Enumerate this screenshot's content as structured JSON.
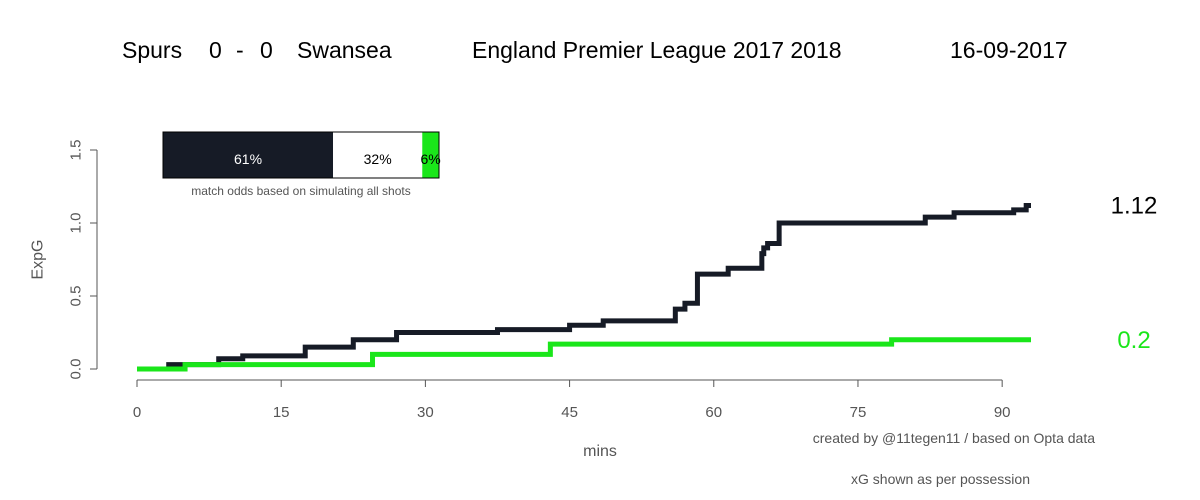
{
  "header": {
    "home_team": "Spurs",
    "home_score": "0",
    "dash": "-",
    "away_score": "0",
    "away_team": "Swansea",
    "competition": "England Premier League 2017 2018",
    "date": "16-09-2017"
  },
  "odds": {
    "home_pct": 61,
    "draw_pct": 32,
    "away_pct": 6,
    "home_label": "61%",
    "draw_label": "32%",
    "away_label": "6%",
    "caption": "match odds based on simulating all shots"
  },
  "credits": {
    "created_by": "created by @11tegen11   /   based on Opta data",
    "possession_note": "xG shown as per possession"
  },
  "chart_data": {
    "type": "line",
    "xlabel": "mins",
    "ylabel": "ExpG",
    "xlim": [
      0,
      93
    ],
    "ylim": [
      0,
      1.5
    ],
    "x_ticks": [
      0,
      15,
      30,
      45,
      60,
      75,
      90
    ],
    "y_ticks": [
      0.0,
      0.5,
      1.0,
      1.5
    ],
    "x_tick_labels": [
      "0",
      "15",
      "30",
      "45",
      "60",
      "75",
      "90"
    ],
    "y_tick_labels": [
      "0.0",
      "0.5",
      "1.0",
      "1.5"
    ],
    "grid": false,
    "series": [
      {
        "name": "Spurs",
        "color": "#161b26",
        "final_label": "1.12",
        "points": [
          [
            0,
            0
          ],
          [
            3.3,
            0.03
          ],
          [
            8.5,
            0.07
          ],
          [
            11,
            0.09
          ],
          [
            17.5,
            0.15
          ],
          [
            22.5,
            0.2
          ],
          [
            27,
            0.25
          ],
          [
            37.5,
            0.27
          ],
          [
            45,
            0.3
          ],
          [
            48.5,
            0.33
          ],
          [
            56,
            0.41
          ],
          [
            57,
            0.45
          ],
          [
            58.3,
            0.65
          ],
          [
            61.5,
            0.69
          ],
          [
            65,
            0.79
          ],
          [
            65.2,
            0.83
          ],
          [
            65.6,
            0.86
          ],
          [
            66.8,
            1.0
          ],
          [
            82,
            1.04
          ],
          [
            85,
            1.07
          ],
          [
            91.2,
            1.09
          ],
          [
            92.5,
            1.12
          ],
          [
            93,
            1.12
          ]
        ]
      },
      {
        "name": "Swansea",
        "color": "#1ae61a",
        "final_label": "0.2",
        "points": [
          [
            0,
            0
          ],
          [
            5,
            0.03
          ],
          [
            24.5,
            0.1
          ],
          [
            43,
            0.17
          ],
          [
            78.5,
            0.2
          ],
          [
            93,
            0.2
          ]
        ]
      }
    ]
  }
}
